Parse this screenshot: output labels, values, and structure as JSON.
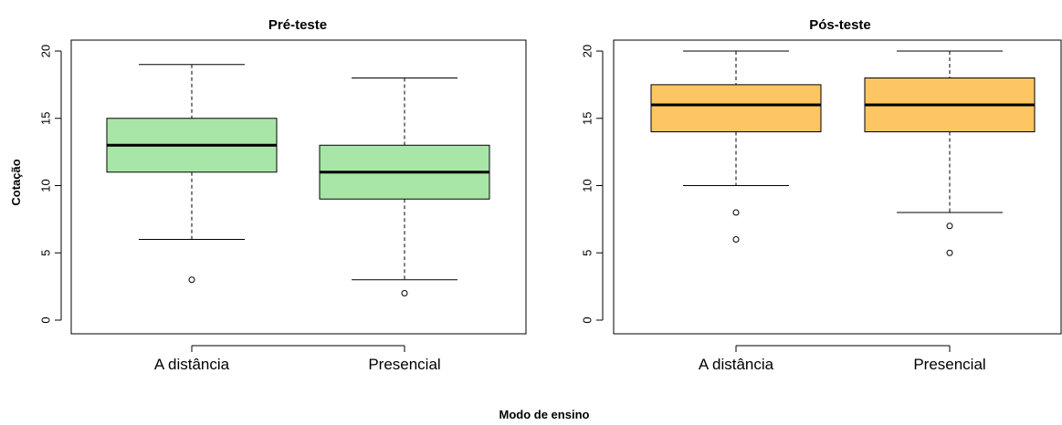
{
  "figure": {
    "xlabel": "Modo de ensino",
    "ylabel": "Cotação"
  },
  "chart_data": [
    {
      "type": "box",
      "title": "Pré-teste",
      "categories": [
        "A distância",
        "Presencial"
      ],
      "ylim": [
        0,
        20
      ],
      "yticks": [
        "0",
        "5",
        "10",
        "15",
        "20"
      ],
      "fill_color": "#a8e6a8",
      "boxes": [
        {
          "category": "A distância",
          "whisker_low": 6,
          "q1": 11,
          "median": 13,
          "q3": 15,
          "whisker_high": 19,
          "outliers": [
            3
          ]
        },
        {
          "category": "Presencial",
          "whisker_low": 3,
          "q1": 9,
          "median": 11,
          "q3": 13,
          "whisker_high": 18,
          "outliers": [
            2
          ]
        }
      ]
    },
    {
      "type": "box",
      "title": "Pós-teste",
      "categories": [
        "A distância",
        "Presencial"
      ],
      "ylim": [
        0,
        20
      ],
      "yticks": [
        "0",
        "5",
        "10",
        "15",
        "20"
      ],
      "fill_color": "#fdc663",
      "boxes": [
        {
          "category": "A distância",
          "whisker_low": 10,
          "q1": 14,
          "median": 16,
          "q3": 17.5,
          "whisker_high": 20,
          "outliers": [
            8,
            6
          ]
        },
        {
          "category": "Presencial",
          "whisker_low": 8,
          "q1": 14,
          "median": 16,
          "q3": 18,
          "whisker_high": 20,
          "outliers": [
            7,
            5
          ]
        }
      ]
    }
  ]
}
